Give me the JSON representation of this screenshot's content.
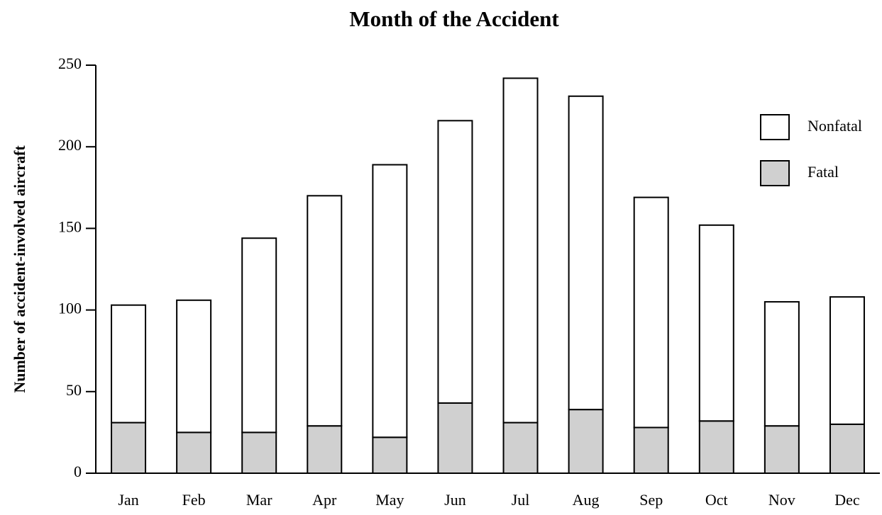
{
  "chart_data": {
    "type": "stacked_bar",
    "title": "Month of the Accident",
    "y_label": "Number of accident-involved aircraft",
    "categories": [
      "Jan",
      "Feb",
      "Mar",
      "Apr",
      "May",
      "Jun",
      "Jul",
      "Aug",
      "Sep",
      "Oct",
      "Nov",
      "Dec"
    ],
    "series": [
      {
        "name": "Fatal",
        "color": "#d0d0d0",
        "values": [
          31,
          25,
          25,
          29,
          22,
          43,
          31,
          39,
          28,
          32,
          29,
          30
        ]
      },
      {
        "name": "Nonfatal",
        "color": "#ffffff",
        "values": [
          72,
          81,
          119,
          141,
          167,
          173,
          211,
          192,
          141,
          120,
          76,
          78
        ]
      }
    ],
    "ylim": [
      0,
      250
    ],
    "yticks": [
      0,
      50,
      100,
      150,
      200,
      250
    ],
    "grid": false,
    "legend": "upper right"
  }
}
